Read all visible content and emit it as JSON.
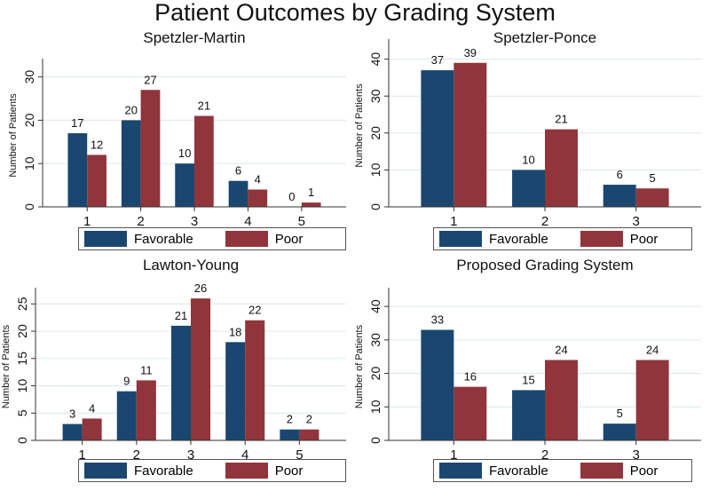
{
  "chart_data": {
    "title": "Patient Outcomes by Grading System",
    "type": "bar",
    "colors": {
      "Favorable": "#1a476f",
      "Poor": "#90353b",
      "grid": "#dbe7ec"
    },
    "legend": {
      "labels": [
        "Favorable",
        "Poor"
      ],
      "placement": "bottom"
    },
    "panels": [
      {
        "title": "Spetzler-Martin",
        "ylabel": "Number of Patients",
        "categories": [
          "1",
          "2",
          "3",
          "4",
          "5"
        ],
        "ylim": [
          0,
          33
        ],
        "yticks": [
          0,
          10,
          20,
          30
        ],
        "series": [
          {
            "name": "Favorable",
            "values": [
              17,
              20,
              10,
              6,
              0
            ]
          },
          {
            "name": "Poor",
            "values": [
              12,
              27,
              21,
              4,
              1
            ]
          }
        ]
      },
      {
        "title": "Spetzler-Ponce",
        "ylabel": "Number of Patients",
        "categories": [
          "1",
          "2",
          "3"
        ],
        "ylim": [
          0,
          44
        ],
        "yticks": [
          0,
          10,
          20,
          30,
          40
        ],
        "series": [
          {
            "name": "Favorable",
            "values": [
              37,
              10,
              6
            ]
          },
          {
            "name": "Poor",
            "values": [
              39,
              21,
              5
            ]
          }
        ]
      },
      {
        "title": "Lawton-Young",
        "ylabel": "Number of Patients",
        "categories": [
          "1",
          "2",
          "3",
          "4",
          "5"
        ],
        "ylim": [
          0,
          27
        ],
        "yticks": [
          0,
          5,
          10,
          15,
          20,
          25
        ],
        "series": [
          {
            "name": "Favorable",
            "values": [
              3,
              9,
              21,
              18,
              2
            ]
          },
          {
            "name": "Poor",
            "values": [
              4,
              11,
              26,
              22,
              2
            ]
          }
        ]
      },
      {
        "title": "Proposed Grading System",
        "ylabel": "Number of Patients",
        "categories": [
          "1",
          "2",
          "3"
        ],
        "ylim": [
          0,
          44
        ],
        "yticks": [
          0,
          10,
          20,
          30,
          40
        ],
        "series": [
          {
            "name": "Favorable",
            "values": [
              33,
              15,
              5
            ]
          },
          {
            "name": "Poor",
            "values": [
              16,
              24,
              24
            ]
          }
        ]
      }
    ]
  }
}
